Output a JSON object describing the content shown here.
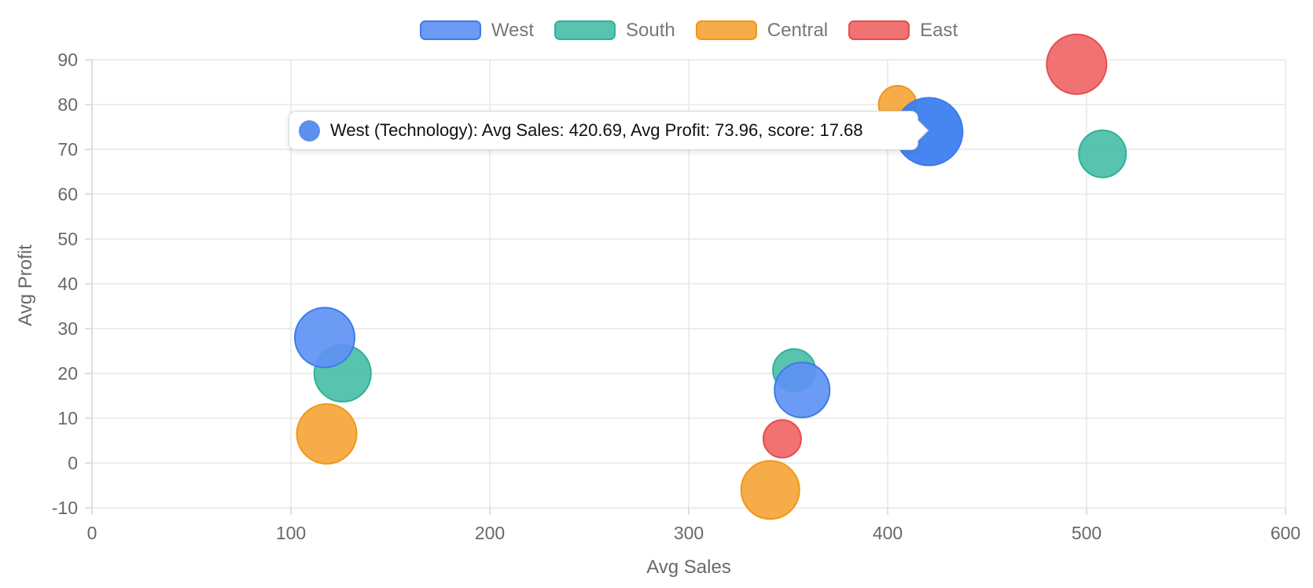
{
  "chart_data": {
    "type": "scatter",
    "subtype": "bubble",
    "title": "",
    "xlabel": "Avg Sales",
    "ylabel": "Avg Profit",
    "xlim": [
      0,
      600
    ],
    "ylim": [
      -10,
      90
    ],
    "x_ticks": [
      0,
      100,
      200,
      300,
      400,
      500,
      600
    ],
    "y_ticks": [
      -10,
      0,
      10,
      20,
      30,
      40,
      50,
      60,
      70,
      80,
      90
    ],
    "grid": true,
    "legend_position": "top",
    "series": [
      {
        "name": "West",
        "fill": "rgba(94,146,243,0.92)",
        "border": "#3d7bea",
        "hover_fill": "rgba(61,128,240,0.95)",
        "points": [
          {
            "x": 117,
            "y": 28,
            "r": 38
          },
          {
            "x": 420.69,
            "y": 73.96,
            "r": 43,
            "hovered": true,
            "category": "Technology",
            "score": 17.68
          },
          {
            "x": 357,
            "y": 16.3,
            "r": 35
          }
        ]
      },
      {
        "name": "South",
        "fill": "rgba(74,190,167,0.92)",
        "border": "#31b198",
        "points": [
          {
            "x": 126,
            "y": 20,
            "r": 36
          },
          {
            "x": 508,
            "y": 69,
            "r": 30
          },
          {
            "x": 353,
            "y": 20.7,
            "r": 27
          }
        ]
      },
      {
        "name": "Central",
        "fill": "rgba(245,168,62,0.95)",
        "border": "#ef9817",
        "points": [
          {
            "x": 118,
            "y": 6.5,
            "r": 38
          },
          {
            "x": 341,
            "y": -6,
            "r": 37
          },
          {
            "x": 405,
            "y": 80,
            "r": 24
          }
        ]
      },
      {
        "name": "East",
        "fill": "rgba(239,106,106,0.95)",
        "border": "#e84c4c",
        "points": [
          {
            "x": 495,
            "y": 89,
            "r": 38
          },
          {
            "x": 347,
            "y": 5.4,
            "r": 24
          }
        ]
      }
    ],
    "colors": {
      "grid": "#e7e7e7",
      "axis_line": "#d6d6d6",
      "tick_label": "#66696c"
    }
  },
  "tooltip": {
    "text": "West (Technology): Avg Sales: 420.69, Avg Profit: 73.96, score: 17.68",
    "dot_color": "#5b8ff0"
  }
}
